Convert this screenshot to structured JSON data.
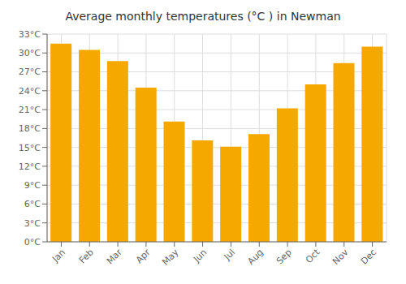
{
  "chart_data": {
    "type": "bar",
    "title": "Average monthly temperatures (°C ) in Newman",
    "categories": [
      "Jan",
      "Feb",
      "Mar",
      "Apr",
      "May",
      "Jun",
      "Jul",
      "Aug",
      "Sep",
      "Oct",
      "Nov",
      "Dec"
    ],
    "values": [
      31.5,
      30.5,
      28.7,
      24.5,
      19.1,
      16.1,
      15.1,
      17.1,
      21.2,
      25.0,
      28.4,
      31.0
    ],
    "color": "#F5A800",
    "ylim": [
      0,
      33
    ],
    "yticks": [
      {
        "value": 0,
        "label": "0°C"
      },
      {
        "value": 3,
        "label": "3°C"
      },
      {
        "value": 6,
        "label": "6°C"
      },
      {
        "value": 9,
        "label": "9°C"
      },
      {
        "value": 12,
        "label": "12°C"
      },
      {
        "value": 15,
        "label": "15°C"
      },
      {
        "value": 18,
        "label": "18°C"
      },
      {
        "value": 21,
        "label": "21°C"
      },
      {
        "value": 24,
        "label": "24°C"
      },
      {
        "value": 27,
        "label": "27°C"
      },
      {
        "value": 30,
        "label": "30°C"
      },
      {
        "value": 33,
        "label": "33°C"
      }
    ],
    "grid": true
  }
}
